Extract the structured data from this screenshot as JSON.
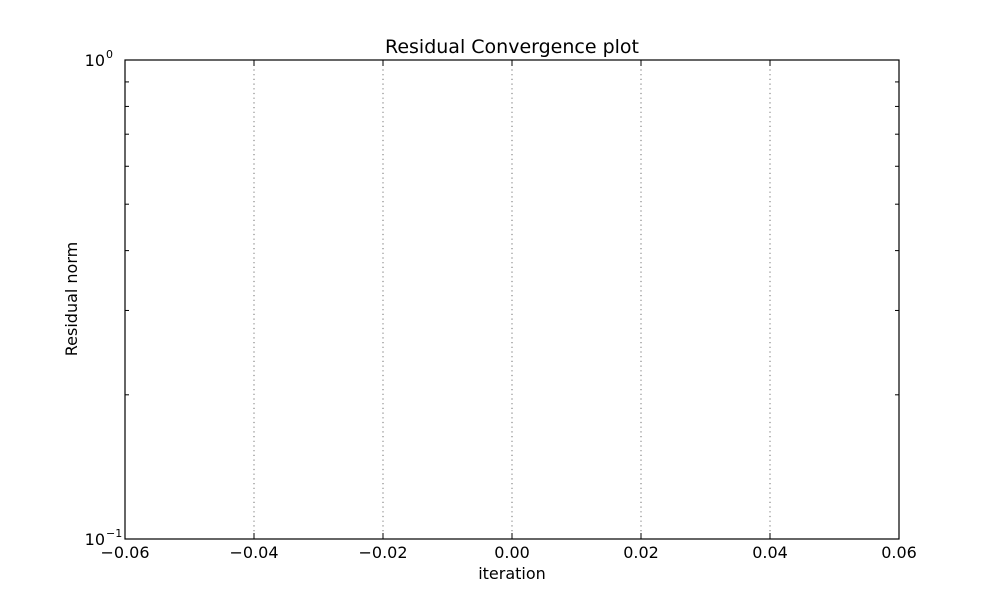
{
  "chart_data": {
    "type": "line",
    "title": "Residual Convergence plot",
    "xlabel": "iteration",
    "ylabel": "Residual norm",
    "xlim": [
      -0.06,
      0.06
    ],
    "ylim": [
      0.1,
      1
    ],
    "yscale": "log",
    "grid": true,
    "grid_axis": "x",
    "x_ticks": [
      -0.06,
      -0.04,
      -0.02,
      0.0,
      0.02,
      0.04,
      0.06
    ],
    "x_tick_labels": [
      "−0.06",
      "−0.04",
      "−0.02",
      "0.00",
      "0.02",
      "0.04",
      "0.06"
    ],
    "y_ticks": [
      {
        "value": 0.1,
        "base": "10",
        "exponent": "−1"
      },
      {
        "value": 1,
        "base": "10",
        "exponent": "0"
      }
    ],
    "series": []
  }
}
